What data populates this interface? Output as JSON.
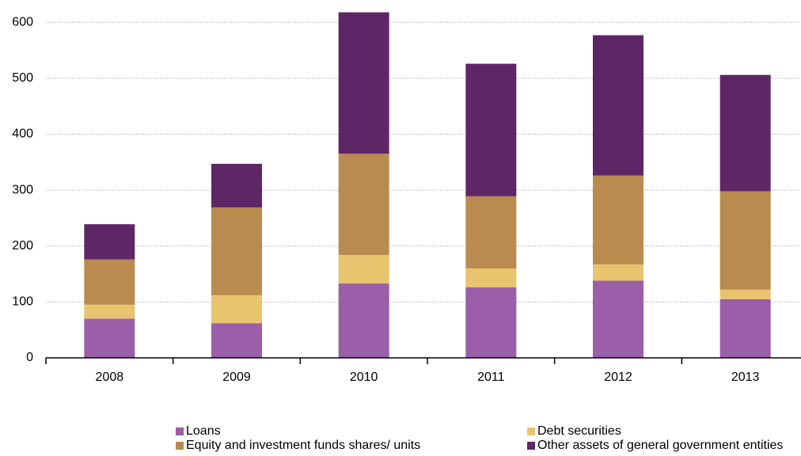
{
  "chart_data": {
    "type": "stacked-bar",
    "categories": [
      "2008",
      "2009",
      "2010",
      "2011",
      "2012",
      "2013"
    ],
    "series": [
      {
        "name": "Loans",
        "color": "#9b5ea8",
        "values": [
          70,
          62,
          133,
          126,
          138,
          105
        ]
      },
      {
        "name": "Debt securities",
        "color": "#e8c46e",
        "values": [
          25,
          50,
          51,
          34,
          29,
          17
        ]
      },
      {
        "name": "Equity and investment funds shares/ units",
        "color": "#b98b4f",
        "values": [
          81,
          157,
          181,
          129,
          159,
          176
        ]
      },
      {
        "name": "Other assets of general government entities",
        "color": "#5f2667",
        "values": [
          63,
          78,
          253,
          237,
          251,
          208
        ]
      }
    ],
    "ylim": [
      0,
      640
    ],
    "yticks": [
      0,
      100,
      200,
      300,
      400,
      500,
      600
    ],
    "grid": true
  }
}
